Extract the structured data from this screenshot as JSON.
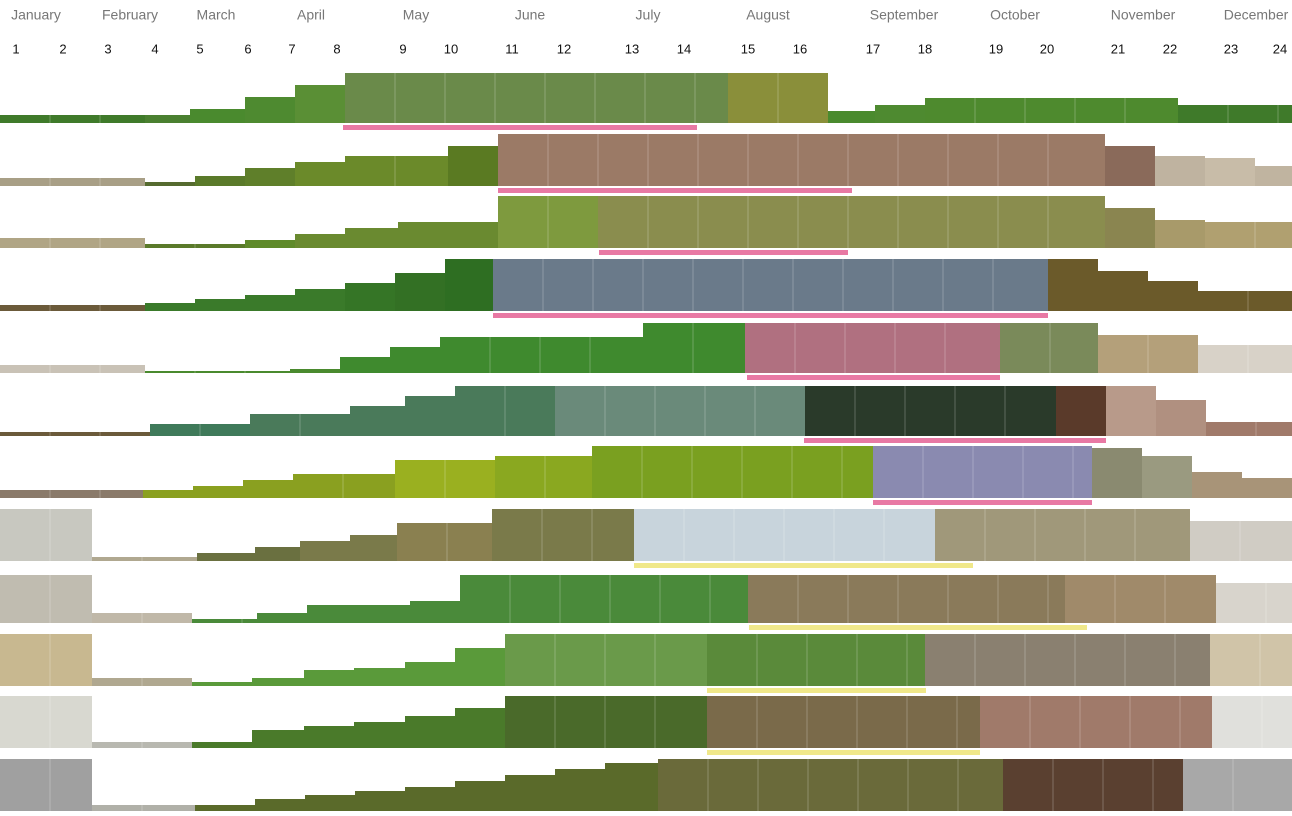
{
  "months": [
    "January",
    "February",
    "March",
    "April",
    "May",
    "June",
    "July",
    "August",
    "September",
    "October",
    "November",
    "December"
  ],
  "periods": [
    "1",
    "2",
    "3",
    "4",
    "5",
    "6",
    "7",
    "8",
    "9",
    "10",
    "11",
    "12",
    "13",
    "14",
    "15",
    "16",
    "17",
    "18",
    "19",
    "20",
    "21",
    "22",
    "23",
    "24"
  ]
}
